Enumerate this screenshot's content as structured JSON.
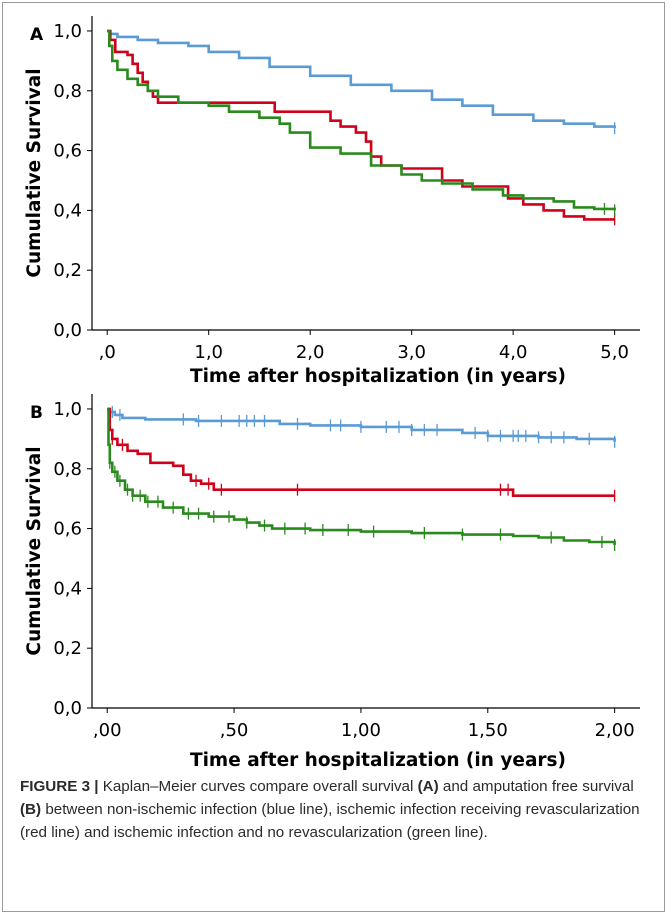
{
  "caption": {
    "label": "FIGURE 3 |",
    "t1": " Kaplan–Meier curves compare overall survival ",
    "b1": "(A)",
    "t2": " and amputation free survival ",
    "b2": "(B)",
    "t3": " between non-ischemic infection (blue line), ischemic infection receiving revascularization (red line) and ischemic infection and no revascularization (green line)."
  },
  "colors": {
    "blue": "#5b9bd5",
    "red": "#d0021b",
    "green": "#2b8a1e",
    "axis": "#000000"
  },
  "chart_data": [
    {
      "panel": "A",
      "type": "line",
      "step": true,
      "xlabel": "Time after hospitalization (in years)",
      "ylabel": "Cumulative Survival",
      "xlim": [
        -0.15,
        5.25
      ],
      "ylim": [
        0,
        1.05
      ],
      "xticks": [
        0,
        1,
        2,
        3,
        4,
        5
      ],
      "xtick_labels": [
        ",0",
        "1,0",
        "2,0",
        "3,0",
        "4,0",
        "5,0"
      ],
      "yticks": [
        0,
        0.2,
        0.4,
        0.6,
        0.8,
        1.0
      ],
      "ytick_labels": [
        "0,0",
        "0,2",
        "0,4",
        "0,6",
        "0,8",
        "1,0"
      ],
      "series": [
        {
          "color": "blue",
          "points": [
            [
              0,
              1.0
            ],
            [
              0.02,
              0.99
            ],
            [
              0.1,
              0.98
            ],
            [
              0.3,
              0.97
            ],
            [
              0.5,
              0.96
            ],
            [
              0.8,
              0.95
            ],
            [
              1.0,
              0.93
            ],
            [
              1.3,
              0.91
            ],
            [
              1.6,
              0.88
            ],
            [
              2.0,
              0.85
            ],
            [
              2.4,
              0.82
            ],
            [
              2.8,
              0.8
            ],
            [
              3.2,
              0.77
            ],
            [
              3.5,
              0.75
            ],
            [
              3.8,
              0.72
            ],
            [
              4.2,
              0.7
            ],
            [
              4.5,
              0.69
            ],
            [
              4.8,
              0.68
            ],
            [
              5.0,
              0.675
            ]
          ],
          "censor": [
            5.0
          ]
        },
        {
          "color": "red",
          "points": [
            [
              0,
              1.0
            ],
            [
              0.03,
              0.97
            ],
            [
              0.08,
              0.93
            ],
            [
              0.2,
              0.92
            ],
            [
              0.25,
              0.89
            ],
            [
              0.3,
              0.86
            ],
            [
              0.35,
              0.83
            ],
            [
              0.4,
              0.8
            ],
            [
              0.45,
              0.78
            ],
            [
              0.5,
              0.76
            ],
            [
              1.0,
              0.76
            ],
            [
              1.6,
              0.76
            ],
            [
              1.65,
              0.73
            ],
            [
              2.15,
              0.73
            ],
            [
              2.2,
              0.7
            ],
            [
              2.3,
              0.68
            ],
            [
              2.45,
              0.66
            ],
            [
              2.55,
              0.63
            ],
            [
              2.6,
              0.58
            ],
            [
              2.7,
              0.55
            ],
            [
              2.9,
              0.54
            ],
            [
              3.3,
              0.5
            ],
            [
              3.5,
              0.48
            ],
            [
              3.9,
              0.48
            ],
            [
              3.95,
              0.44
            ],
            [
              4.1,
              0.42
            ],
            [
              4.3,
              0.4
            ],
            [
              4.5,
              0.38
            ],
            [
              4.7,
              0.37
            ],
            [
              5.0,
              0.37
            ]
          ],
          "censor": [
            5.0
          ]
        },
        {
          "color": "green",
          "points": [
            [
              0,
              1.0
            ],
            [
              0.02,
              0.95
            ],
            [
              0.05,
              0.9
            ],
            [
              0.1,
              0.87
            ],
            [
              0.2,
              0.84
            ],
            [
              0.3,
              0.82
            ],
            [
              0.4,
              0.8
            ],
            [
              0.5,
              0.78
            ],
            [
              0.7,
              0.76
            ],
            [
              1.0,
              0.75
            ],
            [
              1.2,
              0.73
            ],
            [
              1.5,
              0.71
            ],
            [
              1.7,
              0.69
            ],
            [
              1.8,
              0.66
            ],
            [
              2.0,
              0.61
            ],
            [
              2.3,
              0.59
            ],
            [
              2.6,
              0.55
            ],
            [
              2.9,
              0.52
            ],
            [
              3.1,
              0.5
            ],
            [
              3.3,
              0.49
            ],
            [
              3.6,
              0.47
            ],
            [
              3.9,
              0.45
            ],
            [
              4.1,
              0.44
            ],
            [
              4.4,
              0.43
            ],
            [
              4.6,
              0.41
            ],
            [
              4.8,
              0.405
            ],
            [
              5.0,
              0.4
            ]
          ],
          "censor": [
            4.9,
            5.0
          ]
        }
      ]
    },
    {
      "panel": "B",
      "type": "line",
      "step": true,
      "xlabel": "Time after hospitalization (in years)",
      "ylabel": "Cumulative Survival",
      "xlim": [
        -0.06,
        2.1
      ],
      "ylim": [
        0,
        1.05
      ],
      "xticks": [
        0,
        0.5,
        1.0,
        1.5,
        2.0
      ],
      "xtick_labels": [
        ",00",
        ",50",
        "1,00",
        "1,50",
        "2,00"
      ],
      "yticks": [
        0,
        0.2,
        0.4,
        0.6,
        0.8,
        1.0
      ],
      "ytick_labels": [
        "0,0",
        "0,2",
        "0,4",
        "0,6",
        "0,8",
        "1,0"
      ],
      "series": [
        {
          "color": "blue",
          "points": [
            [
              0,
              1.0
            ],
            [
              0.01,
              0.99
            ],
            [
              0.03,
              0.98
            ],
            [
              0.06,
              0.97
            ],
            [
              0.15,
              0.965
            ],
            [
              0.35,
              0.96
            ],
            [
              0.65,
              0.96
            ],
            [
              0.68,
              0.95
            ],
            [
              0.8,
              0.945
            ],
            [
              1.0,
              0.94
            ],
            [
              1.2,
              0.93
            ],
            [
              1.4,
              0.92
            ],
            [
              1.5,
              0.91
            ],
            [
              1.7,
              0.905
            ],
            [
              1.85,
              0.9
            ],
            [
              2.0,
              0.89
            ]
          ],
          "censor": [
            0.02,
            0.05,
            0.3,
            0.36,
            0.45,
            0.52,
            0.55,
            0.58,
            0.62,
            0.75,
            0.88,
            0.92,
            1.0,
            1.1,
            1.15,
            1.2,
            1.25,
            1.3,
            1.45,
            1.5,
            1.55,
            1.6,
            1.62,
            1.65,
            1.7,
            1.75,
            1.8,
            1.9,
            2.0
          ]
        },
        {
          "color": "red",
          "points": [
            [
              0,
              1.0
            ],
            [
              0.01,
              0.93
            ],
            [
              0.02,
              0.9
            ],
            [
              0.04,
              0.88
            ],
            [
              0.08,
              0.86
            ],
            [
              0.12,
              0.85
            ],
            [
              0.17,
              0.82
            ],
            [
              0.26,
              0.81
            ],
            [
              0.3,
              0.78
            ],
            [
              0.33,
              0.76
            ],
            [
              0.37,
              0.75
            ],
            [
              0.42,
              0.73
            ],
            [
              0.6,
              0.73
            ],
            [
              1.0,
              0.73
            ],
            [
              1.58,
              0.73
            ],
            [
              1.6,
              0.71
            ],
            [
              2.0,
              0.71
            ]
          ],
          "censor": [
            0.02,
            0.06,
            0.35,
            0.4,
            0.45,
            0.75,
            1.55,
            1.58,
            2.0
          ]
        },
        {
          "color": "green",
          "points": [
            [
              0,
              1.0
            ],
            [
              0.005,
              0.88
            ],
            [
              0.01,
              0.82
            ],
            [
              0.02,
              0.79
            ],
            [
              0.04,
              0.76
            ],
            [
              0.07,
              0.73
            ],
            [
              0.1,
              0.71
            ],
            [
              0.15,
              0.69
            ],
            [
              0.22,
              0.67
            ],
            [
              0.3,
              0.65
            ],
            [
              0.4,
              0.64
            ],
            [
              0.5,
              0.63
            ],
            [
              0.55,
              0.62
            ],
            [
              0.6,
              0.61
            ],
            [
              0.65,
              0.6
            ],
            [
              0.8,
              0.595
            ],
            [
              1.0,
              0.59
            ],
            [
              1.2,
              0.585
            ],
            [
              1.4,
              0.58
            ],
            [
              1.6,
              0.575
            ],
            [
              1.7,
              0.57
            ],
            [
              1.8,
              0.56
            ],
            [
              1.9,
              0.555
            ],
            [
              2.0,
              0.545
            ]
          ],
          "censor": [
            0.01,
            0.03,
            0.05,
            0.08,
            0.1,
            0.13,
            0.16,
            0.2,
            0.26,
            0.32,
            0.36,
            0.42,
            0.48,
            0.55,
            0.62,
            0.7,
            0.78,
            0.85,
            0.95,
            1.05,
            1.25,
            1.4,
            1.55,
            1.75,
            1.95,
            2.0
          ]
        }
      ]
    }
  ]
}
